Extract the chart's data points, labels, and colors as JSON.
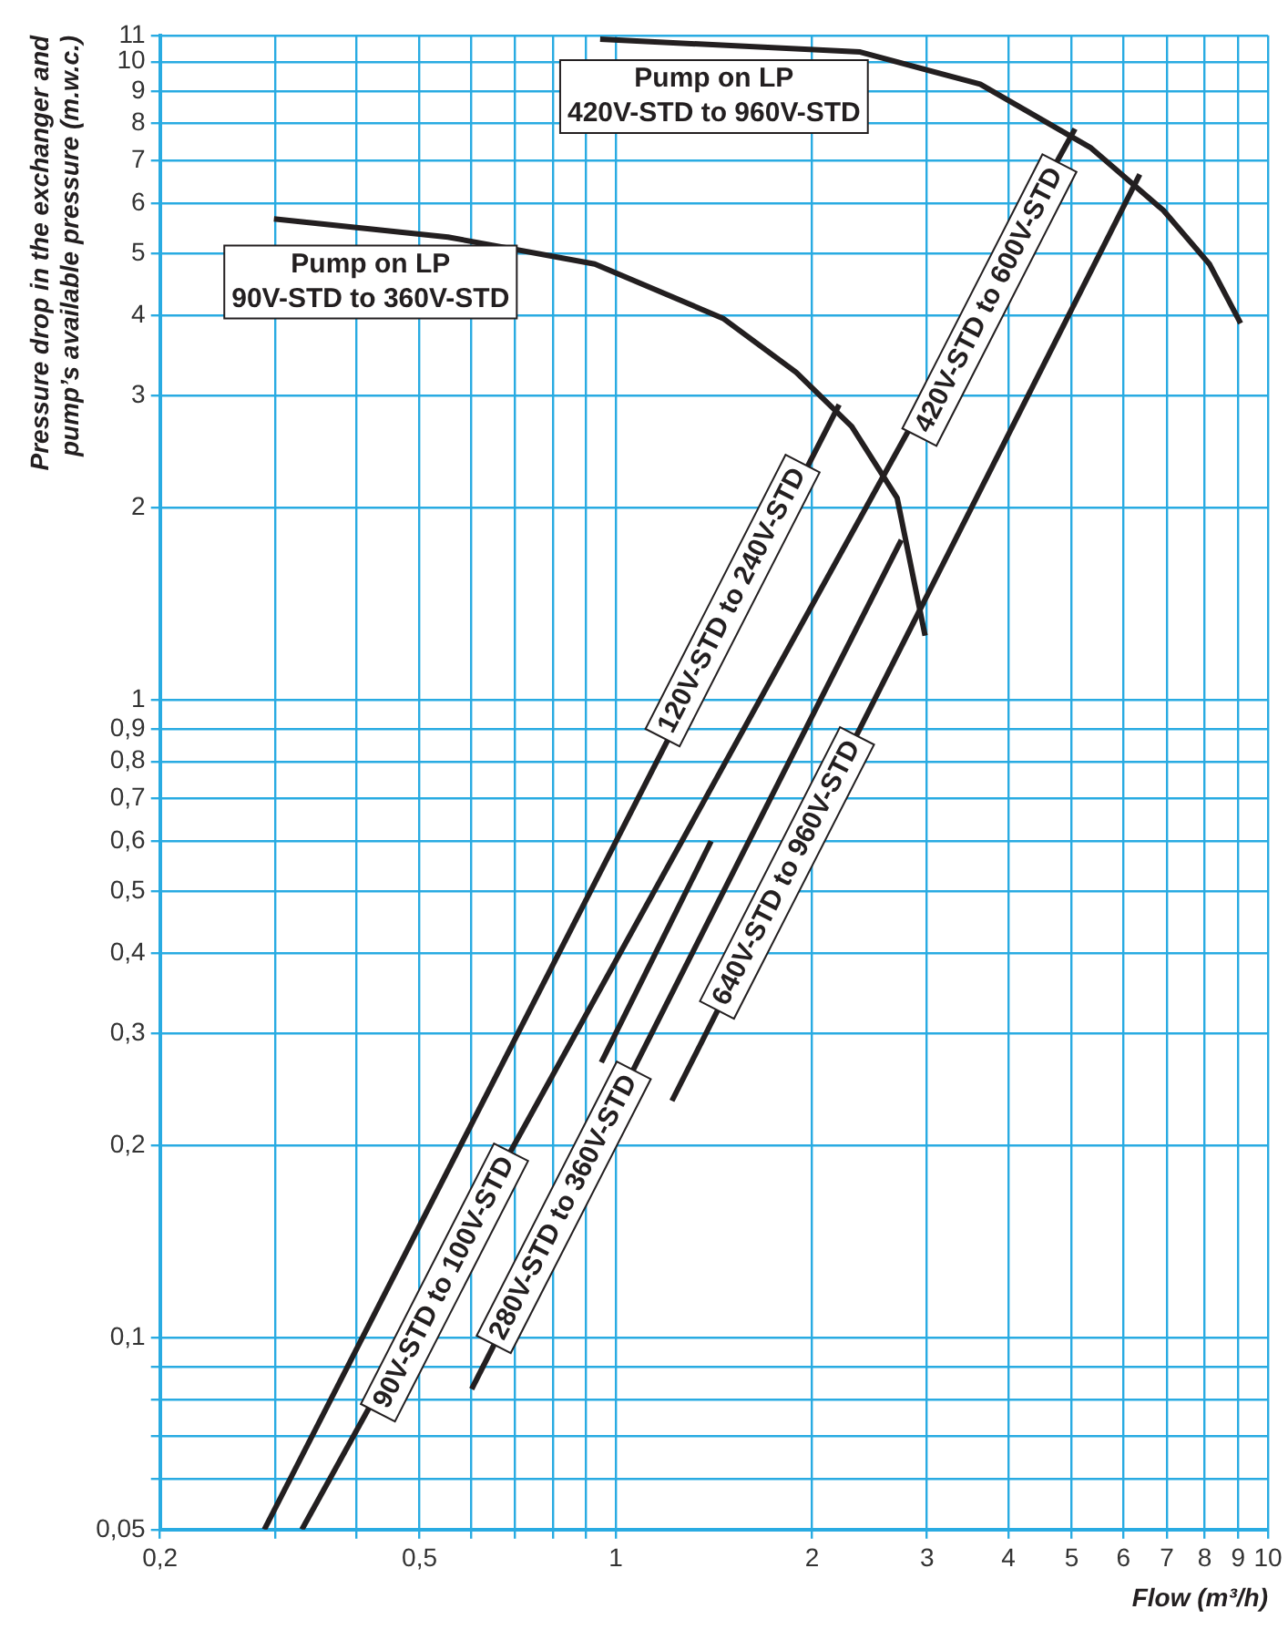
{
  "chart_data": {
    "type": "line",
    "xlabel": "Flow (m³/h)",
    "ylabel": "Pressure drop in the exchanger and\npump’s available pressure (m.w.c.)",
    "log": "xy",
    "grid": true,
    "legend": false,
    "marker": "none",
    "line_style": "solid",
    "xlim": [
      0.2,
      10
    ],
    "ylim": [
      0.05,
      11
    ],
    "xticks": [
      {
        "value": 0.2,
        "label": "0,2"
      },
      {
        "value": 0.3,
        "label": null
      },
      {
        "value": 0.4,
        "label": null
      },
      {
        "value": 0.5,
        "label": "0,5"
      },
      {
        "value": 0.6,
        "label": null
      },
      {
        "value": 0.7,
        "label": null
      },
      {
        "value": 0.8,
        "label": null
      },
      {
        "value": 0.9,
        "label": null
      },
      1,
      2,
      3,
      4,
      5,
      6,
      7,
      8,
      9,
      10
    ],
    "yticks": [
      {
        "value": 0.05,
        "label": "0,05"
      },
      {
        "value": 0.06,
        "label": null
      },
      {
        "value": 0.07,
        "label": null
      },
      {
        "value": 0.08,
        "label": null
      },
      {
        "value": 0.09,
        "label": null
      },
      {
        "value": 0.1,
        "label": "0,1"
      },
      {
        "value": 0.2,
        "label": "0,2"
      },
      {
        "value": 0.3,
        "label": "0,3"
      },
      {
        "value": 0.4,
        "label": "0,4"
      },
      {
        "value": 0.5,
        "label": "0,5"
      },
      {
        "value": 0.6,
        "label": "0,6"
      },
      {
        "value": 0.7,
        "label": "0,7"
      },
      {
        "value": 0.8,
        "label": "0,8"
      },
      {
        "value": 0.9,
        "label": "0,9"
      },
      1,
      2,
      3,
      4,
      5,
      6,
      7,
      8,
      9,
      10,
      11
    ],
    "series": [
      {
        "color": "#231f20",
        "x": [
          0.299,
          0.553,
          0.928,
          1.46,
          1.89,
          2.3,
          2.7,
          2.98
        ],
        "values": [
          5.67,
          5.31,
          4.82,
          3.96,
          3.26,
          2.68,
          2.07,
          1.26
        ]
      },
      {
        "color": "#231f20",
        "x": [
          0.946,
          2.37,
          3.62,
          5.34,
          6.91,
          8.13,
          9.08
        ],
        "values": [
          10.85,
          10.36,
          9.22,
          7.34,
          5.85,
          4.82,
          3.89
        ]
      },
      {
        "color": "#231f20",
        "x": [
          0.289,
          2.2
        ],
        "values": [
          0.05,
          2.9
        ]
      },
      {
        "color": "#231f20",
        "x": [
          0.33,
          5.06
        ],
        "values": [
          0.05,
          7.85
        ]
      },
      {
        "color": "#231f20",
        "x": [
          0.95,
          1.4
        ],
        "values": [
          0.27,
          0.6
        ]
      },
      {
        "color": "#231f20",
        "x": [
          0.601,
          2.74
        ],
        "values": [
          0.083,
          1.78
        ]
      },
      {
        "color": "#231f20",
        "x": [
          1.219,
          6.36
        ],
        "values": [
          0.235,
          6.66
        ]
      }
    ],
    "annotations": [
      "Pump on LP\n90V-STD to 360V-STD",
      "Pump on LP\n420V-STD to 960V-STD",
      {
        "text": "120V-STD to 240V-STD",
        "x": 1.51,
        "y": 1.43
      },
      {
        "text": "420V-STD to 600V-STD",
        "x": 3.74,
        "y": 4.23
      },
      {
        "text": "90V-STD to 100V-STD",
        "x": 0.546,
        "y": 0.122
      },
      {
        "text": "280V-STD to 360V-STD",
        "x": 0.832,
        "y": 0.16
      },
      {
        "text": "640V-STD to 960V-STD",
        "x": 1.83,
        "y": 0.535
      }
    ]
  }
}
